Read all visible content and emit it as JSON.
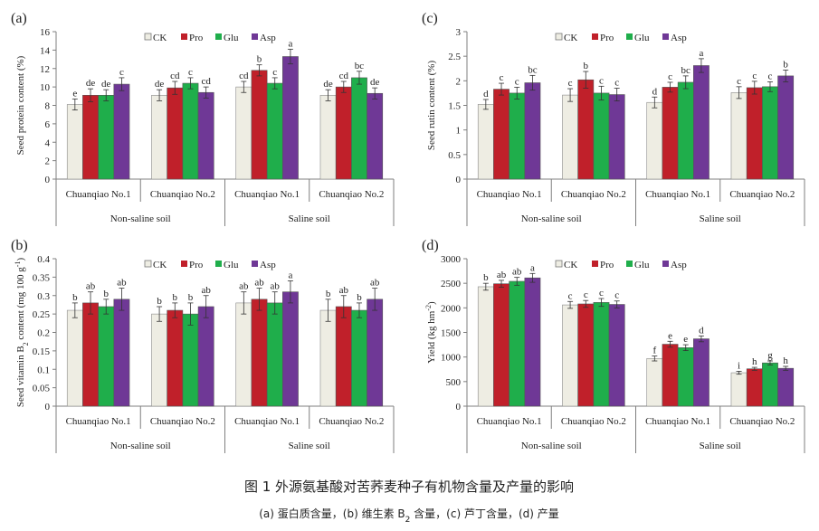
{
  "legend": [
    "CK",
    "Pro",
    "Glu",
    "Asp"
  ],
  "colors": {
    "CK": "#eeede3",
    "Pro": "#c0202a",
    "Glu": "#1fae4b",
    "Asp": "#6f3896",
    "axis": "#7f7f7f"
  },
  "caption": {
    "title": "图 1  外源氨基酸对苦荞麦种子有机物含量及产量的影响",
    "subtitle_parts": [
      "(a)  蛋白质含量，(b)  维生素 B",
      "2",
      " 含量，(c)  芦丁含量，(d)  产量"
    ]
  },
  "chart_data": [
    {
      "panel": "(a)",
      "type": "bar",
      "ylabel_parts": [
        [
          "Seed protein content (%)",
          ""
        ]
      ],
      "ylim": [
        0,
        16
      ],
      "yticks": [
        "0",
        "2",
        "4",
        "6",
        "8",
        "10",
        "12",
        "14",
        "16"
      ],
      "ystep": 2,
      "groups": [
        "Non-saline soil",
        "Saline soil"
      ],
      "categories": [
        "Chuanqiao No.1",
        "Chuanqiao No.2",
        "Chuanqiao No.1",
        "Chuanqiao No.2"
      ],
      "series": [
        {
          "name": "CK",
          "values": [
            8.1,
            9.1,
            10.0,
            9.1
          ],
          "errors": [
            0.6,
            0.6,
            0.6,
            0.6
          ],
          "letters": [
            "e",
            "de",
            "cd",
            "de"
          ]
        },
        {
          "name": "Pro",
          "values": [
            9.1,
            9.9,
            11.8,
            10.0
          ],
          "errors": [
            0.7,
            0.7,
            0.6,
            0.6
          ],
          "letters": [
            "de",
            "cd",
            "b",
            "cd"
          ]
        },
        {
          "name": "Glu",
          "values": [
            9.1,
            10.4,
            10.4,
            11.0
          ],
          "errors": [
            0.6,
            0.6,
            0.6,
            0.7
          ],
          "letters": [
            "de",
            "c",
            "c",
            "bc"
          ]
        },
        {
          "name": "Asp",
          "values": [
            10.3,
            9.4,
            13.3,
            9.3
          ],
          "errors": [
            0.7,
            0.6,
            0.8,
            0.6
          ],
          "letters": [
            "c",
            "cd",
            "a",
            "de"
          ]
        }
      ]
    },
    {
      "panel": "(c)",
      "type": "bar",
      "ylabel_parts": [
        [
          "Seed rutin content (%)",
          ""
        ]
      ],
      "ylim": [
        0,
        3
      ],
      "yticks": [
        "0",
        "0.5",
        "1",
        "1.5",
        "2",
        "2.5",
        "3"
      ],
      "ystep": 0.5,
      "groups": [
        "Non-saline soil",
        "Saline soil"
      ],
      "categories": [
        "Chuanqiao No.1",
        "Chuanqiao No.2",
        "Chuanqiao No.1",
        "Chuanqiao No.2"
      ],
      "series": [
        {
          "name": "CK",
          "values": [
            1.52,
            1.71,
            1.56,
            1.76
          ],
          "errors": [
            0.1,
            0.13,
            0.11,
            0.12
          ],
          "letters": [
            "d",
            "c",
            "d",
            "c"
          ]
        },
        {
          "name": "Pro",
          "values": [
            1.83,
            2.02,
            1.87,
            1.86
          ],
          "errors": [
            0.12,
            0.17,
            0.1,
            0.13
          ],
          "letters": [
            "c",
            "b",
            "c",
            "c"
          ]
        },
        {
          "name": "Glu",
          "values": [
            1.75,
            1.75,
            1.97,
            1.88
          ],
          "errors": [
            0.12,
            0.14,
            0.13,
            0.1
          ],
          "letters": [
            "c",
            "c",
            "bc",
            "c"
          ]
        },
        {
          "name": "Asp",
          "values": [
            1.96,
            1.72,
            2.31,
            2.1
          ],
          "errors": [
            0.15,
            0.13,
            0.14,
            0.12
          ],
          "letters": [
            "bc",
            "c",
            "a",
            "b"
          ]
        }
      ]
    },
    {
      "panel": "(b)",
      "type": "bar",
      "ylabel_parts": [
        [
          "Seed vitamin B",
          ""
        ],
        [
          "2",
          "sub"
        ],
        [
          " content (mg 100 g",
          ""
        ],
        [
          "-1",
          "sup"
        ],
        [
          ")",
          ""
        ]
      ],
      "ylim": [
        0,
        0.4
      ],
      "yticks": [
        "0",
        "0.05",
        "0.1",
        "0.15",
        "0.2",
        "0.25",
        "0.3",
        "0.35",
        "0.4"
      ],
      "ystep": 0.05,
      "groups": [
        "Non-saline soil",
        "Saline soil"
      ],
      "categories": [
        "Chuanqiao No.1",
        "Chuanqiao No.2",
        "Chuanqiao No.1",
        "Chuanqiao No.2"
      ],
      "series": [
        {
          "name": "CK",
          "values": [
            0.26,
            0.25,
            0.28,
            0.26
          ],
          "errors": [
            0.02,
            0.02,
            0.03,
            0.03
          ],
          "letters": [
            "b",
            "b",
            "ab",
            "b"
          ]
        },
        {
          "name": "Pro",
          "values": [
            0.28,
            0.26,
            0.29,
            0.27
          ],
          "errors": [
            0.03,
            0.02,
            0.03,
            0.03
          ],
          "letters": [
            "ab",
            "b",
            "ab",
            "ab"
          ]
        },
        {
          "name": "Glu",
          "values": [
            0.27,
            0.25,
            0.28,
            0.26
          ],
          "errors": [
            0.02,
            0.03,
            0.03,
            0.02
          ],
          "letters": [
            "b",
            "b",
            "ab",
            "b"
          ]
        },
        {
          "name": "Asp",
          "values": [
            0.29,
            0.27,
            0.31,
            0.29
          ],
          "errors": [
            0.03,
            0.03,
            0.03,
            0.03
          ],
          "letters": [
            "ab",
            "ab",
            "a",
            "ab"
          ]
        }
      ]
    },
    {
      "panel": "(d)",
      "type": "bar",
      "ylabel_parts": [
        [
          "Yield (kg hm",
          ""
        ],
        [
          "-2",
          "sup"
        ],
        [
          ")",
          ""
        ]
      ],
      "ylim": [
        0,
        3000
      ],
      "yticks": [
        "0",
        "500",
        "1000",
        "1500",
        "2000",
        "2500",
        "3000"
      ],
      "ystep": 500,
      "groups": [
        "Non-saline soil",
        "Saline soil"
      ],
      "categories": [
        "Chuanqiao No.1",
        "Chuanqiao No.2",
        "Chuanqiao No.1",
        "Chuanqiao No.2"
      ],
      "series": [
        {
          "name": "CK",
          "values": [
            2430,
            2060,
            970,
            680
          ],
          "errors": [
            70,
            70,
            50,
            30
          ],
          "letters": [
            "b",
            "c",
            "f",
            "i"
          ]
        },
        {
          "name": "Pro",
          "values": [
            2490,
            2080,
            1260,
            760
          ],
          "errors": [
            70,
            70,
            60,
            30
          ],
          "letters": [
            "ab",
            "c",
            "e",
            "h"
          ]
        },
        {
          "name": "Glu",
          "values": [
            2540,
            2110,
            1190,
            880
          ],
          "errors": [
            80,
            80,
            60,
            40
          ],
          "letters": [
            "ab",
            "c",
            "e",
            "g"
          ]
        },
        {
          "name": "Asp",
          "values": [
            2610,
            2070,
            1370,
            770
          ],
          "errors": [
            90,
            70,
            60,
            40
          ],
          "letters": [
            "a",
            "c",
            "d",
            "h"
          ]
        }
      ]
    }
  ]
}
